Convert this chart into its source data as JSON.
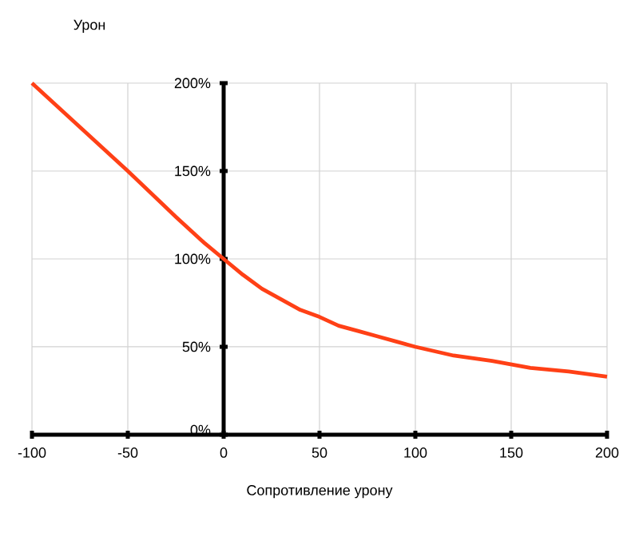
{
  "chart_data": {
    "type": "line",
    "xlabel": "Сопротивление урону",
    "ylabel": "Урон",
    "x": [
      -100,
      -75,
      -50,
      -25,
      -10,
      0,
      10,
      20,
      30,
      40,
      50,
      60,
      70,
      80,
      90,
      100,
      120,
      140,
      160,
      180,
      200
    ],
    "series": [
      {
        "color": "#ff4016",
        "values": [
          200,
          175,
          150,
          124,
          109,
          100,
          91,
          83,
          77,
          71,
          67,
          62,
          59,
          56,
          53,
          50,
          45,
          42,
          38,
          36,
          33
        ]
      }
    ],
    "xlim": [
      -100,
      200
    ],
    "xticks": [
      -100,
      -50,
      0,
      50,
      100,
      150,
      200
    ],
    "ylim": [
      0,
      200
    ],
    "yticks": [
      {
        "value": 0,
        "label": "0%"
      },
      {
        "value": 50,
        "label": "50%"
      },
      {
        "value": 100,
        "label": "100%"
      },
      {
        "value": 150,
        "label": "150%"
      },
      {
        "value": 200,
        "label": "200%"
      }
    ],
    "grid": true,
    "marker": "none",
    "line_style": "solid"
  }
}
